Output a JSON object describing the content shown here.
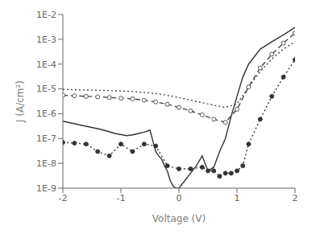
{
  "chart_data": {
    "type": "line",
    "title": "",
    "xlabel": "Voltage (V)",
    "ylabel": "J (A/cm²)",
    "log": "y",
    "grid": false,
    "xlim": [
      -2,
      2
    ],
    "xticks": [
      -2,
      -1,
      0,
      1,
      2
    ],
    "ylim": [
      1e-09,
      0.01
    ],
    "yticks": [
      {
        "value": 1e-09,
        "label": "1E-9"
      },
      {
        "value": 1e-08,
        "label": "1E-8"
      },
      {
        "value": 1e-07,
        "label": "1E-7"
      },
      {
        "value": 1e-06,
        "label": "1E-6"
      },
      {
        "value": 1e-05,
        "label": "1E-5"
      },
      {
        "value": 0.0001,
        "label": "1E-4"
      },
      {
        "value": 0.001,
        "label": "1E-3"
      },
      {
        "value": 0.01,
        "label": "1E-2"
      }
    ],
    "series": [
      {
        "line_style": "dotted",
        "color": "#444444",
        "x": [
          -2.0,
          -1.8,
          -1.6,
          -1.4,
          -1.2,
          -1.0,
          -0.8,
          -0.6,
          -0.4,
          -0.2,
          0.0,
          0.2,
          0.4,
          0.6,
          0.8,
          1.0,
          1.2,
          1.4,
          1.6,
          1.8,
          2.0
        ],
        "values": [
          9.5e-06,
          9.2e-06,
          9e-06,
          8.8e-06,
          8.5e-06,
          8.2e-06,
          7.8e-06,
          7.2e-06,
          6.5e-06,
          5.5e-06,
          4.5e-06,
          3.5e-06,
          2.8e-06,
          2.2e-06,
          1.8e-06,
          2.5e-06,
          1.2e-05,
          5e-05,
          0.00016,
          0.0004,
          0.0008
        ]
      },
      {
        "line_style": "dashed",
        "marker": "open_circle",
        "color": "#444444",
        "x": [
          -2.0,
          -1.8,
          -1.6,
          -1.4,
          -1.2,
          -1.0,
          -0.8,
          -0.6,
          -0.4,
          -0.2,
          0.0,
          0.2,
          0.4,
          0.6,
          0.8,
          1.0,
          1.2,
          1.4,
          1.6,
          1.8,
          2.0
        ],
        "values": [
          5.5e-06,
          5.3e-06,
          5e-06,
          4.8e-06,
          4.5e-06,
          4.2e-06,
          4e-06,
          3.5e-06,
          3e-06,
          2.4e-06,
          1.8e-06,
          1.3e-06,
          9e-07,
          6e-07,
          4.5e-07,
          1.5e-06,
          1.2e-05,
          7e-05,
          0.00025,
          0.0007,
          0.0018
        ]
      },
      {
        "line_style": "solid",
        "color": "#333333",
        "x": [
          -2.0,
          -1.7,
          -1.5,
          -1.3,
          -1.1,
          -0.9,
          -0.8,
          -0.7,
          -0.6,
          -0.5,
          -0.4,
          -0.35,
          -0.3,
          -0.25,
          -0.2,
          -0.15,
          -0.1,
          -0.05,
          0.0,
          0.1,
          0.2,
          0.3,
          0.4,
          0.5,
          0.6,
          0.7,
          0.8,
          0.9,
          1.0,
          1.1,
          1.2,
          1.4,
          1.6,
          1.8,
          2.0
        ],
        "values": [
          5e-07,
          3.5e-07,
          2.8e-07,
          2.2e-07,
          1.6e-07,
          1.3e-07,
          1.4e-07,
          1.6e-07,
          1.8e-07,
          2.2e-07,
          3e-08,
          2e-08,
          1.5e-08,
          8e-09,
          5e-09,
          2e-09,
          1.2e-09,
          1e-09,
          1e-09,
          2e-09,
          4e-09,
          8e-09,
          2e-08,
          5e-09,
          7e-09,
          3e-08,
          1e-07,
          8e-07,
          5e-06,
          3e-05,
          0.0001,
          0.0004,
          0.0008,
          0.0015,
          0.003
        ]
      },
      {
        "line_style": "dotted",
        "marker": "filled_circle",
        "color": "#333333",
        "x": [
          -2.0,
          -1.8,
          -1.6,
          -1.4,
          -1.2,
          -1.0,
          -0.8,
          -0.6,
          -0.4,
          -0.2,
          0.0,
          0.2,
          0.4,
          0.5,
          0.6,
          0.7,
          0.8,
          0.9,
          1.0,
          1.1,
          1.2,
          1.4,
          1.6,
          1.8,
          2.0
        ],
        "values": [
          7e-08,
          6.5e-08,
          6e-08,
          3e-08,
          2e-08,
          6e-08,
          3e-08,
          6e-08,
          5e-08,
          8e-09,
          6e-09,
          6e-09,
          7e-09,
          5e-09,
          5e-09,
          3e-09,
          4e-09,
          4e-09,
          5e-09,
          8e-09,
          6e-08,
          6e-07,
          5e-06,
          3e-05,
          0.00015
        ]
      }
    ]
  }
}
